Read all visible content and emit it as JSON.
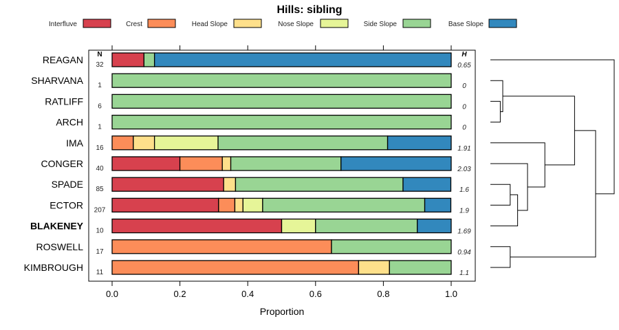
{
  "chart_data": {
    "type": "bar",
    "orientation": "horizontal",
    "stacked": true,
    "title": "Hills: sibling",
    "xlabel": "Proportion",
    "ylabel": "",
    "xlim": [
      0,
      1
    ],
    "x_ticks": [
      "0.0",
      "0.2",
      "0.4",
      "0.6",
      "0.8",
      "1.0"
    ],
    "n_header": "N",
    "h_header": "H",
    "legend": [
      {
        "name": "Interfluve",
        "color": "#D7414E"
      },
      {
        "name": "Crest",
        "color": "#FC8D59"
      },
      {
        "name": "Head Slope",
        "color": "#FEE08B"
      },
      {
        "name": "Nose Slope",
        "color": "#E6F598"
      },
      {
        "name": "Side Slope",
        "color": "#99D594"
      },
      {
        "name": "Base Slope",
        "color": "#3288BD"
      }
    ],
    "rows": [
      {
        "name": "REAGAN",
        "n": "32",
        "h": "0.65",
        "bold": false,
        "values": [
          0.094,
          0,
          0,
          0,
          0.031,
          0.875
        ]
      },
      {
        "name": "SHARVANA",
        "n": "1",
        "h": "0",
        "bold": false,
        "values": [
          0,
          0,
          0,
          0,
          1.0,
          0
        ]
      },
      {
        "name": "RATLIFF",
        "n": "6",
        "h": "0",
        "bold": false,
        "values": [
          0,
          0,
          0,
          0,
          1.0,
          0
        ]
      },
      {
        "name": "ARCH",
        "n": "1",
        "h": "0",
        "bold": false,
        "values": [
          0,
          0,
          0,
          0,
          1.0,
          0
        ]
      },
      {
        "name": "IMA",
        "n": "16",
        "h": "1.91",
        "bold": false,
        "values": [
          0,
          0.0625,
          0.0625,
          0.1875,
          0.5,
          0.1875
        ]
      },
      {
        "name": "CONGER",
        "n": "40",
        "h": "2.03",
        "bold": false,
        "values": [
          0.2,
          0.125,
          0.025,
          0,
          0.325,
          0.325
        ]
      },
      {
        "name": "SPADE",
        "n": "85",
        "h": "1.6",
        "bold": false,
        "values": [
          0.329,
          0,
          0.035,
          0,
          0.494,
          0.141
        ]
      },
      {
        "name": "ECTOR",
        "n": "207",
        "h": "1.9",
        "bold": false,
        "values": [
          0.314,
          0.048,
          0.024,
          0.058,
          0.478,
          0.077
        ]
      },
      {
        "name": "BLAKENEY",
        "n": "10",
        "h": "1.69",
        "bold": true,
        "values": [
          0.5,
          0,
          0,
          0.1,
          0.3,
          0.1
        ]
      },
      {
        "name": "ROSWELL",
        "n": "17",
        "h": "0.94",
        "bold": false,
        "values": [
          0,
          0.647,
          0,
          0,
          0.353,
          0
        ]
      },
      {
        "name": "KIMBROUGH",
        "n": "11",
        "h": "1.1",
        "bold": false,
        "values": [
          0,
          0.727,
          0.091,
          0,
          0.182,
          0
        ]
      }
    ],
    "dendrogram": {
      "leaves": [
        "REAGAN",
        "SHARVANA",
        "RATLIFF",
        "ARCH",
        "IMA",
        "CONGER",
        "SPADE",
        "ECTOR",
        "BLAKENEY",
        "ROSWELL",
        "KIMBROUGH"
      ],
      "max_height": 1.0,
      "merges": [
        {
          "left": "RATLIFF",
          "right": "ARCH",
          "height": 0.08
        },
        {
          "left": "SHARVANA",
          "right": "m1",
          "height": 0.1
        },
        {
          "left": "SPADE",
          "right": "ECTOR",
          "height": 0.16
        },
        {
          "left": "m3",
          "right": "BLAKENEY",
          "height": 0.22
        },
        {
          "left": "CONGER",
          "right": "m4",
          "height": 0.3
        },
        {
          "left": "ROSWELL",
          "right": "KIMBROUGH",
          "height": 0.16
        },
        {
          "left": "IMA",
          "right": "m5",
          "height": 0.44
        },
        {
          "left": "m2",
          "right": "m7",
          "height": 0.68
        },
        {
          "left": "m8",
          "right": "m6",
          "height": 0.85
        },
        {
          "left": "REAGAN",
          "right": "m9",
          "height": 1.0
        }
      ]
    }
  }
}
